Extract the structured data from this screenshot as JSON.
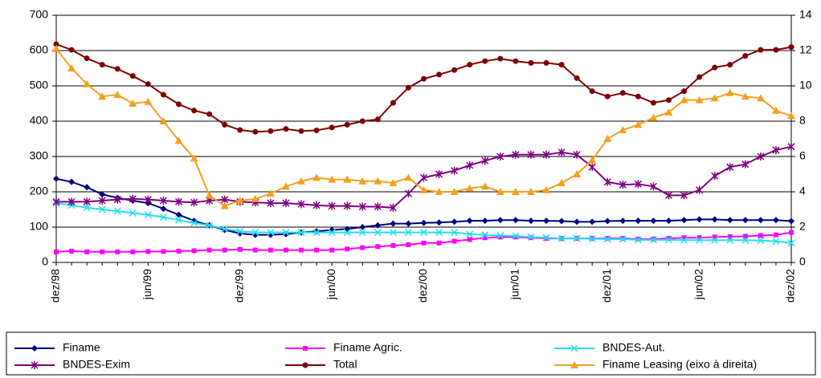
{
  "chart_data": {
    "type": "line",
    "categories": [
      "dez/98",
      null,
      null,
      null,
      null,
      null,
      "jun/99",
      null,
      null,
      null,
      null,
      null,
      "dez/99",
      null,
      null,
      null,
      null,
      null,
      "jun/00",
      null,
      null,
      null,
      null,
      null,
      "dez/00",
      null,
      null,
      null,
      null,
      null,
      "jun/01",
      null,
      null,
      null,
      null,
      null,
      "dez/01",
      null,
      null,
      null,
      null,
      null,
      "jun/02",
      null,
      null,
      null,
      null,
      null,
      "dez/02"
    ],
    "ylim": [
      0,
      700
    ],
    "yticks": [
      0,
      100,
      200,
      300,
      400,
      500,
      600,
      700
    ],
    "y2lim": [
      0,
      14
    ],
    "y2ticks": [
      0,
      2,
      4,
      6,
      8,
      10,
      12,
      14
    ],
    "grid": true,
    "legend": "bottom",
    "series": [
      {
        "name": "Finame",
        "color": "#000080",
        "marker": "diamond",
        "values": [
          237,
          228,
          213,
          193,
          183,
          175,
          168,
          152,
          135,
          118,
          105,
          92,
          82,
          78,
          78,
          80,
          85,
          88,
          92,
          95,
          100,
          105,
          110,
          110,
          112,
          113,
          115,
          118,
          118,
          120,
          120,
          118,
          118,
          117,
          115,
          115,
          117,
          118,
          118,
          118,
          118,
          120,
          122,
          122,
          120,
          120,
          120,
          120,
          117
        ]
      },
      {
        "name": "Finame Agric.",
        "color": "#ff00ff",
        "marker": "square",
        "values": [
          30,
          32,
          30,
          30,
          30,
          30,
          31,
          31,
          32,
          33,
          35,
          35,
          37,
          35,
          35,
          35,
          35,
          35,
          35,
          38,
          42,
          45,
          48,
          50,
          55,
          55,
          60,
          65,
          70,
          72,
          72,
          70,
          68,
          68,
          68,
          68,
          68,
          68,
          66,
          66,
          68,
          70,
          70,
          72,
          73,
          74,
          76,
          78,
          85
        ]
      },
      {
        "name": "BNDES-Aut.",
        "color": "#22e0f0",
        "marker": "x",
        "values": [
          168,
          162,
          155,
          150,
          145,
          140,
          135,
          128,
          120,
          112,
          105,
          95,
          88,
          85,
          85,
          85,
          85,
          85,
          85,
          85,
          85,
          85,
          85,
          85,
          85,
          85,
          85,
          80,
          78,
          76,
          75,
          72,
          70,
          68,
          68,
          67,
          66,
          66,
          64,
          64,
          64,
          63,
          63,
          63,
          63,
          63,
          62,
          60,
          55
        ]
      },
      {
        "name": "BNDES-Exim",
        "color": "#800080",
        "marker": "star",
        "values": [
          172,
          172,
          172,
          175,
          178,
          180,
          178,
          175,
          172,
          170,
          175,
          178,
          172,
          170,
          168,
          168,
          165,
          162,
          160,
          160,
          158,
          158,
          155,
          195,
          240,
          250,
          260,
          275,
          288,
          300,
          305,
          305,
          305,
          312,
          305,
          270,
          228,
          220,
          222,
          215,
          190,
          190,
          205,
          245,
          270,
          278,
          300,
          318,
          328
        ]
      },
      {
        "name": "Total",
        "color": "#800000",
        "marker": "circle",
        "values": [
          618,
          602,
          578,
          560,
          548,
          528,
          505,
          475,
          448,
          430,
          420,
          390,
          375,
          370,
          372,
          378,
          372,
          374,
          382,
          390,
          400,
          405,
          452,
          495,
          520,
          532,
          545,
          560,
          570,
          577,
          570,
          565,
          565,
          560,
          522,
          485,
          470,
          480,
          470,
          452,
          460,
          485,
          525,
          552,
          560,
          585,
          602,
          602,
          610
        ]
      },
      {
        "name": "Finame Leasing (eixo à direita)",
        "color": "#f5a020",
        "marker": "triangle",
        "axis": "y2",
        "values": [
          12.1,
          11,
          10.1,
          9.4,
          9.5,
          9,
          9.1,
          8,
          6.9,
          5.9,
          3.8,
          3.2,
          3.5,
          3.6,
          3.9,
          4.3,
          4.6,
          4.8,
          4.7,
          4.7,
          4.6,
          4.6,
          4.5,
          4.8,
          4.1,
          4.0,
          4.0,
          4.2,
          4.3,
          4.0,
          4.0,
          4.0,
          4.1,
          4.5,
          5.0,
          5.8,
          7.0,
          7.5,
          7.8,
          8.2,
          8.5,
          9.2,
          9.2,
          9.3,
          9.6,
          9.4,
          9.3,
          8.6,
          8.3
        ]
      }
    ]
  }
}
